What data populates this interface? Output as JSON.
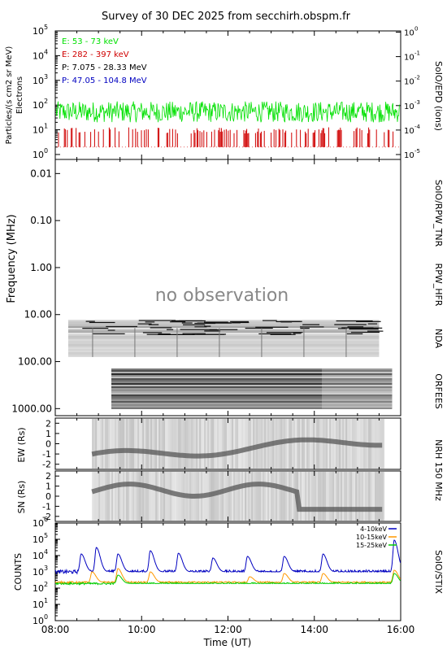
{
  "title": "Survey of 30 DEC 2025 from secchirh.obspm.fr",
  "colors": {
    "e_low": "#00e000",
    "e_high": "#d00000",
    "p_low": "#000000",
    "p_high": "#0000c0",
    "stix_4_10": "#0000c0",
    "stix_10_15": "#ff9900",
    "stix_15_25": "#00cc00"
  },
  "panels": {
    "epd": {
      "ylabel": "Particles/(s cm2 sr MeV)",
      "ylabel2": "Electrons",
      "right_label": "SoIO/EPD (ions)",
      "yticks_left": [
        "10",
        "10",
        "10",
        "10",
        "10",
        "10"
      ],
      "yticks_left_exp": [
        "0",
        "1",
        "2",
        "3",
        "4",
        "5"
      ],
      "yticks_right": [
        "10",
        "10",
        "10",
        "10",
        "10",
        "10",
        "10"
      ],
      "yticks_right_exp": [
        "-5",
        "-4",
        "-3",
        "-2",
        "-1",
        "0"
      ],
      "legend": [
        "E: 53 - 73 keV",
        "E: 282 - 397 keV",
        "P: 7.075 - 28.33 MeV",
        "P: 47.05 - 104.8 MeV"
      ]
    },
    "radio": {
      "ylabel": "Frequency (MHz)",
      "yticks": [
        "0.01",
        "0.10",
        "1.00",
        "10.00",
        "100.00",
        "1000.00"
      ],
      "no_obs": "no observation",
      "labels": [
        "SoIO/RPW_TNR",
        "RPW_HFR",
        "NDA",
        "ORFEES"
      ]
    },
    "nrh_ew": {
      "ylabel": "EW (Rs)",
      "yticks": [
        "2",
        "1",
        "0",
        "-1",
        "-2"
      ]
    },
    "nrh_sn": {
      "ylabel": "SN (Rs)",
      "yticks": [
        "2",
        "1",
        "0",
        "-1",
        "-2"
      ],
      "right_label": "NRH 150 MHz"
    },
    "stix": {
      "ylabel": "COUNTS",
      "right_label": "SoIO/STIX",
      "legend": [
        "4-10keV",
        "10-15keV",
        "15-25keV"
      ],
      "yticks_exp": [
        "0",
        "1",
        "2",
        "3",
        "4",
        "5",
        "6"
      ]
    }
  },
  "xaxis": {
    "label": "Time (UT)",
    "ticks": [
      "08:00",
      "10:00",
      "12:00",
      "14:00",
      "16:00"
    ]
  },
  "chart_data": [
    {
      "type": "line",
      "panel": "SoIO/EPD",
      "x_range_hours": [
        8,
        16
      ],
      "ylim_log10": [
        -0.2,
        5
      ],
      "series": [
        {
          "name": "E: 53 - 73 keV",
          "typical_log10": [
            1.3,
            2.1
          ]
        },
        {
          "name": "E: 282 - 397 keV",
          "typical_log10": [
            0.8,
            1.1
          ]
        }
      ]
    },
    {
      "type": "heatmap",
      "panel": "Radio spectrum",
      "instruments": [
        {
          "name": "NDA",
          "freq_range_MHz": [
            13,
            80
          ],
          "time_range_hours": [
            8.3,
            15.5
          ]
        },
        {
          "name": "ORFEES",
          "freq_range_MHz": [
            140,
            1000
          ],
          "time_range_hours": [
            9.3,
            15.8
          ]
        }
      ]
    },
    {
      "type": "heatmap",
      "panel": "NRH 150 MHz",
      "time_range_hours": [
        8.85,
        15.6
      ],
      "ylim": [
        -2.5,
        2.5
      ]
    },
    {
      "type": "line",
      "panel": "SoIO/STIX",
      "x_range_hours": [
        8,
        16
      ],
      "ylim_log10": [
        0,
        6
      ],
      "series": [
        {
          "name": "4-10keV",
          "baseline_log10": 3.0,
          "peaks": [
            [
              8.6,
              4.1
            ],
            [
              8.95,
              4.5
            ],
            [
              9.45,
              4.1
            ],
            [
              10.2,
              4.3
            ],
            [
              10.85,
              4.15
            ],
            [
              11.65,
              3.85
            ],
            [
              12.45,
              3.95
            ],
            [
              13.3,
              3.95
            ],
            [
              14.2,
              4.1
            ],
            [
              15.85,
              4.95
            ]
          ]
        },
        {
          "name": "10-15keV",
          "baseline_log10": 2.35,
          "peaks": [
            [
              8.85,
              3.0
            ],
            [
              9.45,
              3.2
            ],
            [
              10.2,
              3.0
            ],
            [
              12.5,
              2.7
            ],
            [
              13.3,
              2.9
            ],
            [
              14.2,
              2.9
            ],
            [
              15.85,
              3.1
            ]
          ]
        },
        {
          "name": "15-25keV",
          "baseline_log10": 2.28,
          "peaks": [
            [
              9.45,
              2.8
            ],
            [
              15.85,
              2.9
            ]
          ]
        }
      ]
    }
  ]
}
